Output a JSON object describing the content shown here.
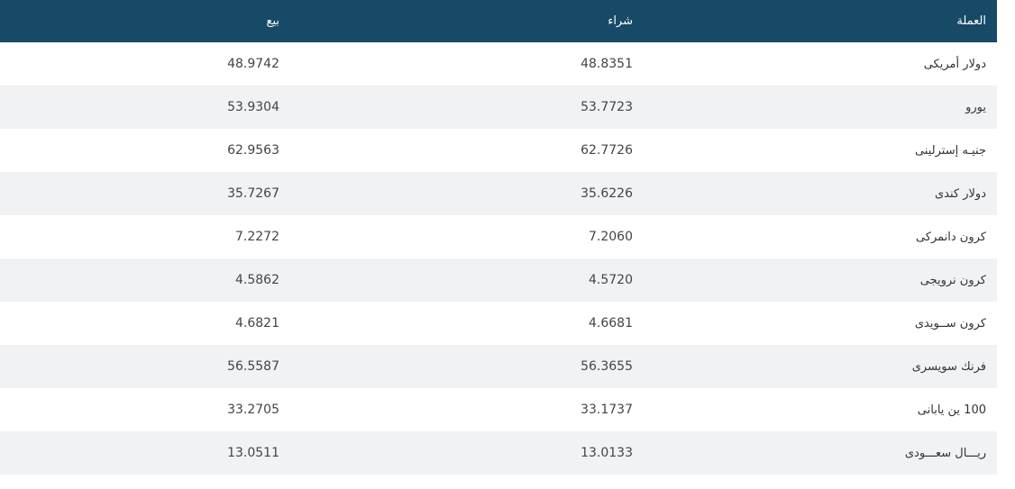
{
  "table": {
    "headers": {
      "currency": "العملة",
      "buy": "شراء",
      "sell": "بيع"
    },
    "rows": [
      {
        "currency": "دولار أمريكى",
        "buy": "48.8351",
        "sell": "48.9742"
      },
      {
        "currency": "يورو",
        "buy": "53.7723",
        "sell": "53.9304"
      },
      {
        "currency": "جنيـه إسترلينى",
        "buy": "62.7726",
        "sell": "62.9563"
      },
      {
        "currency": "دولار كندى",
        "buy": "35.6226",
        "sell": "35.7267"
      },
      {
        "currency": "كرون دانمركى",
        "buy": "7.2060",
        "sell": "7.2272"
      },
      {
        "currency": "كرون نرويجى",
        "buy": "4.5720",
        "sell": "4.5862"
      },
      {
        "currency": "كرون ســويدى",
        "buy": "4.6681",
        "sell": "4.6821"
      },
      {
        "currency": "فرنك سويسرى",
        "buy": "56.3655",
        "sell": "56.5587"
      },
      {
        "currency": "100 ين يابانى",
        "buy": "33.1737",
        "sell": "33.2705"
      },
      {
        "currency": "ريـــال سعـــودى",
        "buy": "13.0133",
        "sell": "13.0511"
      }
    ]
  }
}
